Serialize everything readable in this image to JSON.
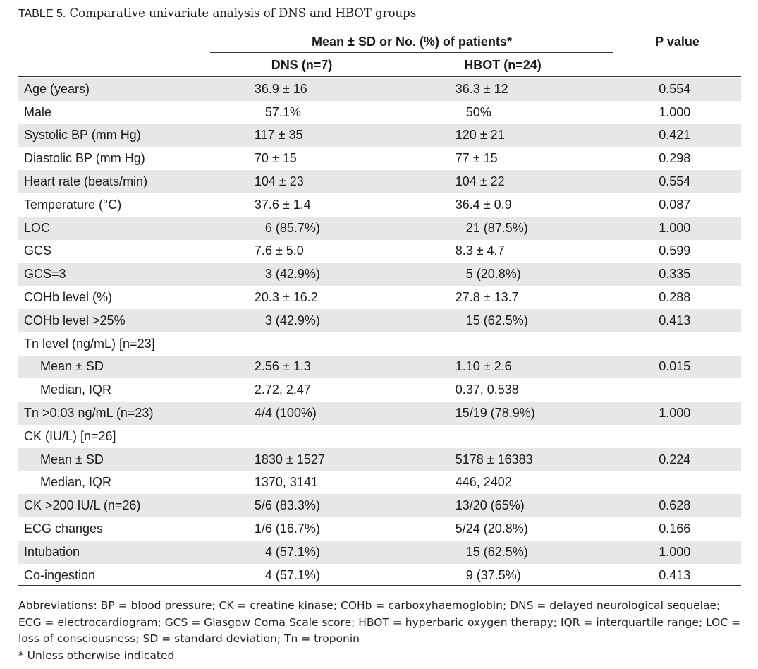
{
  "caption": {
    "label": "TABLE 5.",
    "text": "Comparative univariate analysis of DNS and HBOT groups"
  },
  "header": {
    "group_title": "Mean ± SD or No. (%) of patients*",
    "pvalue_title": "P value",
    "col_dns": "DNS (n=7)",
    "col_hbot": "HBOT (n=24)"
  },
  "rows": [
    {
      "label": "Age (years)",
      "dns": "36.9 ± 16",
      "hbot": "36.3 ± 12",
      "p": "0.554",
      "shade": true,
      "sub": false
    },
    {
      "label": "Male",
      "dns": "57.1%",
      "hbot": "50%",
      "p": "1.000",
      "shade": false,
      "sub": false
    },
    {
      "label": "Systolic BP (mm Hg)",
      "dns": "117 ± 35",
      "hbot": "120 ± 21",
      "p": "0.421",
      "shade": true,
      "sub": false
    },
    {
      "label": "Diastolic BP (mm Hg)",
      "dns": "70 ± 15",
      "hbot": "77 ± 15",
      "p": "0.298",
      "shade": false,
      "sub": false
    },
    {
      "label": "Heart rate (beats/min)",
      "dns": "104 ± 23",
      "hbot": "104 ± 22",
      "p": "0.554",
      "shade": true,
      "sub": false
    },
    {
      "label": "Temperature (°C)",
      "dns": "37.6 ± 1.4",
      "hbot": "36.4 ± 0.9",
      "p": "0.087",
      "shade": false,
      "sub": false
    },
    {
      "label": "LOC",
      "dns": "6 (85.7%)",
      "hbot": "21 (87.5%)",
      "p": "1.000",
      "shade": true,
      "sub": false
    },
    {
      "label": "GCS",
      "dns": "7.6 ± 5.0",
      "hbot": "8.3 ± 4.7",
      "p": "0.599",
      "shade": false,
      "sub": false
    },
    {
      "label": "GCS=3",
      "dns": "3 (42.9%)",
      "hbot": "5 (20.8%)",
      "p": "0.335",
      "shade": true,
      "sub": false
    },
    {
      "label": "COHb level (%)",
      "dns": "20.3 ± 16.2",
      "hbot": "27.8 ± 13.7",
      "p": "0.288",
      "shade": false,
      "sub": false
    },
    {
      "label": "COHb level >25%",
      "dns": "3 (42.9%)",
      "hbot": "15 (62.5%)",
      "p": "0.413",
      "shade": true,
      "sub": false
    },
    {
      "label": "Tn level (ng/mL) [n=23]",
      "dns": "",
      "hbot": "",
      "p": "",
      "shade": false,
      "sub": false
    },
    {
      "label": "Mean ± SD",
      "dns": "2.56 ± 1.3",
      "hbot": "1.10 ± 2.6",
      "p": "0.015",
      "shade": true,
      "sub": true
    },
    {
      "label": "Median, IQR",
      "dns": "2.72, 2.47",
      "hbot": "0.37, 0.538",
      "p": "",
      "shade": false,
      "sub": true
    },
    {
      "label": "Tn >0.03 ng/mL (n=23)",
      "dns": "4/4 (100%)",
      "hbot": "15/19 (78.9%)",
      "p": "1.000",
      "shade": true,
      "sub": false
    },
    {
      "label": "CK (IU/L) [n=26]",
      "dns": "",
      "hbot": "",
      "p": "",
      "shade": false,
      "sub": false
    },
    {
      "label": "Mean ± SD",
      "dns": "1830 ± 1527",
      "hbot": "5178 ± 16383",
      "p": "0.224",
      "shade": true,
      "sub": true
    },
    {
      "label": "Median, IQR",
      "dns": "1370, 3141",
      "hbot": "446, 2402",
      "p": "",
      "shade": false,
      "sub": true
    },
    {
      "label": "CK >200 IU/L (n=26)",
      "dns": "5/6 (83.3%)",
      "hbot": "13/20 (65%)",
      "p": "0.628",
      "shade": true,
      "sub": false
    },
    {
      "label": "ECG changes",
      "dns": "1/6 (16.7%)",
      "hbot": "5/24 (20.8%)",
      "p": "0.166",
      "shade": false,
      "sub": false
    },
    {
      "label": "Intubation",
      "dns": "4 (57.1%)",
      "hbot": "15 (62.5%)",
      "p": "1.000",
      "shade": true,
      "sub": false
    },
    {
      "label": "Co-ingestion",
      "dns": "4 (57.1%)",
      "hbot": "9 (37.5%)",
      "p": "0.413",
      "shade": false,
      "sub": false
    }
  ],
  "footnote": {
    "abbreviations": "Abbreviations: BP = blood pressure; CK = creatine kinase; COHb = carboxyhaemoglobin; DNS = delayed neurological sequelae; ECG = electrocardiogram; GCS = Glasgow Coma Scale score; HBOT = hyperbaric oxygen therapy; IQR = interquartile range; LOC = loss of consciousness; SD = standard deviation; Tn = troponin",
    "note": "*  Unless otherwise indicated"
  }
}
